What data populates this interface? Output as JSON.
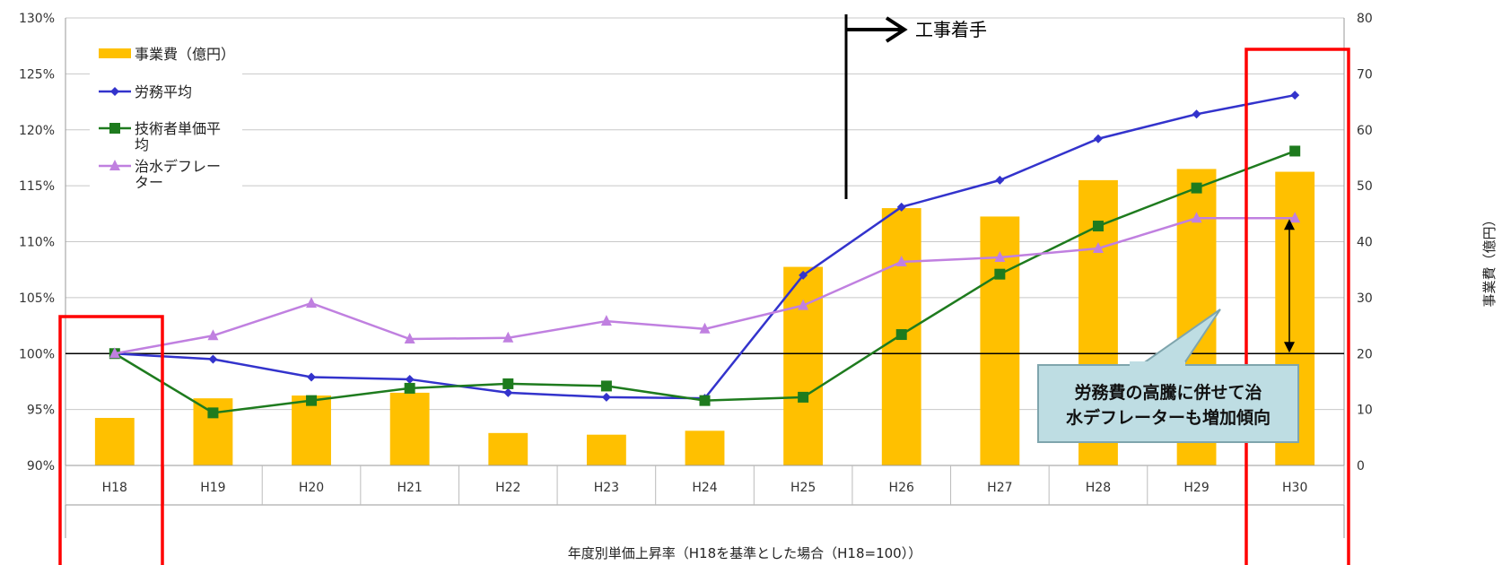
{
  "chart_data": {
    "type": "bar+line",
    "xlabel": "年度別単価上昇率（H18を基準とした場合（H18=100））",
    "ylabel_right": "事業費（億円）",
    "categories": [
      "H18",
      "H19",
      "H20",
      "H21",
      "H22",
      "H23",
      "H24",
      "H25",
      "H26",
      "H27",
      "H28",
      "H29",
      "H30"
    ],
    "y_left": {
      "min": 0.9,
      "max": 1.3,
      "step": 0.05,
      "ticks": [
        "90%",
        "95%",
        "100%",
        "105%",
        "110%",
        "115%",
        "120%",
        "125%",
        "130%"
      ]
    },
    "y_right": {
      "min": 0,
      "max": 80,
      "step": 10,
      "ticks": [
        "0",
        "10",
        "20",
        "30",
        "40",
        "50",
        "60",
        "70",
        "80"
      ]
    },
    "bars": {
      "name": "事業費（億円）",
      "axis": "right",
      "color": "#FFC000",
      "values": [
        8.5,
        12,
        12.5,
        13,
        5.8,
        5.5,
        6.2,
        35.5,
        46,
        44.5,
        51,
        53,
        52.5
      ]
    },
    "series": [
      {
        "name": "労務平均",
        "color": "#3333CC",
        "marker": "diamond",
        "values": [
          1.0,
          0.995,
          0.979,
          0.977,
          0.965,
          0.961,
          0.96,
          1.07,
          1.131,
          1.155,
          1.192,
          1.214,
          1.231
        ]
      },
      {
        "name": "技術者単価平均",
        "color": "#1E7B1E",
        "marker": "square",
        "values": [
          1.0,
          0.947,
          0.958,
          0.969,
          0.973,
          0.971,
          0.958,
          0.961,
          1.017,
          1.071,
          1.114,
          1.148,
          1.181
        ]
      },
      {
        "name": "治水デフレーター",
        "color": "#C080E0",
        "marker": "triangle",
        "values": [
          1.0,
          1.016,
          1.045,
          1.013,
          1.014,
          1.029,
          1.022,
          1.043,
          1.082,
          1.086,
          1.094,
          1.121,
          1.121
        ]
      }
    ],
    "legend": [
      {
        "label": "事業費（億円）",
        "kind": "bar"
      },
      {
        "label": "労務平均",
        "kind": "line"
      },
      {
        "label": "技術者単価平均",
        "kind": "line"
      },
      {
        "label": "治水デフレーター",
        "kind": "line"
      }
    ],
    "legend_position": "top-left",
    "gridlines": true,
    "annotations": {
      "construction_start": "工事着手",
      "callout": [
        "労務費の高騰に併せて治",
        "水デフレーターも増加傾向"
      ]
    }
  }
}
